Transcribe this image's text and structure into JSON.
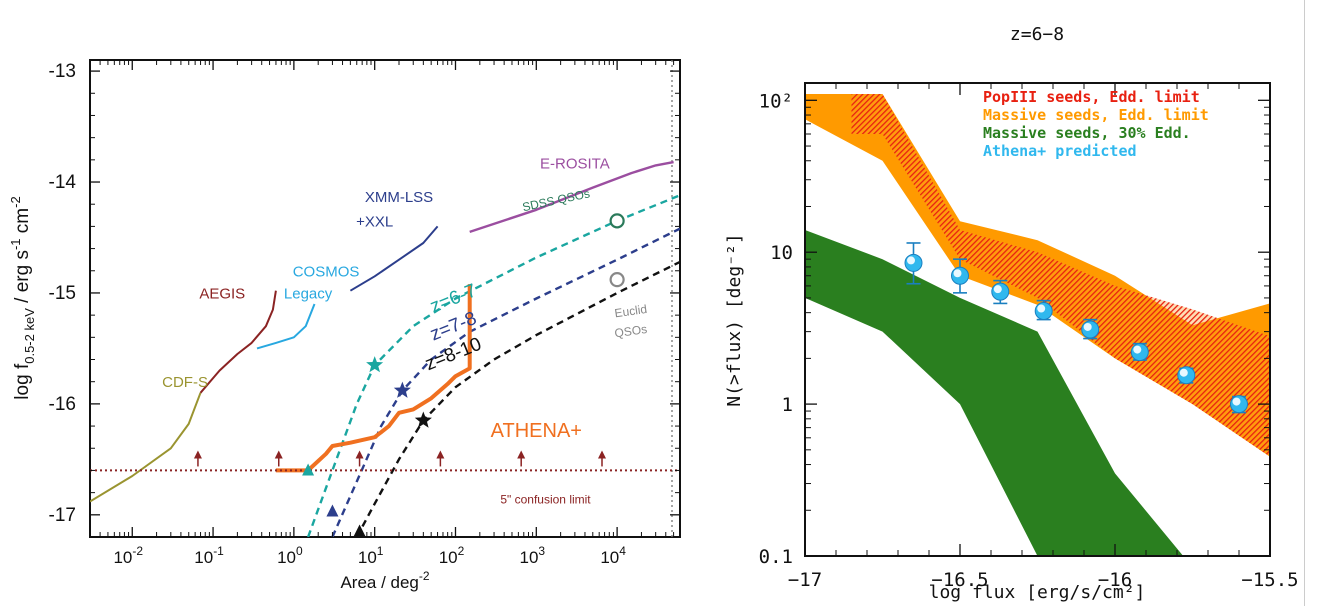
{
  "chart_data": [
    {
      "type": "line",
      "xlabel": "Area / deg",
      "xlabel_sup": "-2",
      "ylabel_parts": [
        "log f",
        "0.5-2 keV",
        " / erg s",
        "-1",
        " cm",
        "-2"
      ],
      "x_scale": "log",
      "xlim": [
        0.003,
        60000
      ],
      "ylim": [
        -17.2,
        -12.9
      ],
      "x_ticks": [
        {
          "value": 0.01,
          "base": "10",
          "exp": "-2"
        },
        {
          "value": 0.1,
          "base": "10",
          "exp": "-1"
        },
        {
          "value": 1,
          "base": "10",
          "exp": "0"
        },
        {
          "value": 10,
          "base": "10",
          "exp": "1"
        },
        {
          "value": 100,
          "base": "10",
          "exp": "2"
        },
        {
          "value": 1000,
          "base": "10",
          "exp": "3"
        },
        {
          "value": 10000,
          "base": "10",
          "exp": "4"
        }
      ],
      "y_ticks": [
        {
          "value": -13,
          "label": "-13"
        },
        {
          "value": -14,
          "label": "-14"
        },
        {
          "value": -15,
          "label": "-15"
        },
        {
          "value": -16,
          "label": "-16"
        },
        {
          "value": -17,
          "label": "-17"
        }
      ],
      "series": [
        {
          "name": "CDF-S",
          "color": "#9a9430",
          "style": "solid",
          "width": 2,
          "x": [
            0.003,
            0.01,
            0.03,
            0.05,
            0.07
          ],
          "y": [
            -16.88,
            -16.65,
            -16.4,
            -16.18,
            -15.9
          ]
        },
        {
          "name": "AEGIS",
          "color": "#8b2323",
          "style": "solid",
          "width": 2,
          "x": [
            0.07,
            0.12,
            0.2,
            0.3,
            0.45,
            0.55,
            0.6
          ],
          "y": [
            -15.9,
            -15.7,
            -15.55,
            -15.45,
            -15.3,
            -15.15,
            -14.98
          ]
        },
        {
          "name": "COSMOS Legacy",
          "color": "#28a8e0",
          "style": "solid",
          "width": 2,
          "x": [
            0.35,
            0.6,
            1.0,
            1.4,
            1.8
          ],
          "y": [
            -15.5,
            -15.45,
            -15.4,
            -15.3,
            -15.1
          ]
        },
        {
          "name": "XMM-LSS +XXL",
          "color": "#2c3e8c",
          "style": "solid",
          "width": 2,
          "x": [
            5,
            10,
            20,
            40,
            60
          ],
          "y": [
            -14.98,
            -14.85,
            -14.7,
            -14.55,
            -14.4
          ]
        },
        {
          "name": "E-ROSITA",
          "color": "#9b4ea0",
          "style": "solid",
          "width": 2.4,
          "x": [
            150,
            1000,
            5000,
            15000,
            30000,
            50000
          ],
          "y": [
            -14.45,
            -14.25,
            -14.05,
            -13.92,
            -13.85,
            -13.82
          ]
        },
        {
          "name": "z=6-7",
          "color": "#1aa6a0",
          "style": "dashed",
          "width": 2.4,
          "x": [
            1.5,
            3,
            6,
            10,
            30,
            100,
            1000,
            10000,
            60000
          ],
          "y": [
            -17.2,
            -16.6,
            -16.0,
            -15.65,
            -15.3,
            -15.05,
            -14.68,
            -14.35,
            -14.12
          ]
        },
        {
          "name": "z=7-8",
          "color": "#2c3e8c",
          "style": "dashed",
          "width": 2.4,
          "x": [
            3,
            6,
            12,
            22,
            50,
            150,
            1000,
            10000,
            60000
          ],
          "y": [
            -17.2,
            -16.7,
            -16.2,
            -15.88,
            -15.6,
            -15.35,
            -15.05,
            -14.7,
            -14.42
          ]
        },
        {
          "name": "z=8-10",
          "color": "#111111",
          "style": "dashed",
          "width": 2.4,
          "x": [
            6,
            10,
            20,
            40,
            100,
            300,
            1000,
            10000,
            60000
          ],
          "y": [
            -17.2,
            -16.9,
            -16.5,
            -16.15,
            -15.85,
            -15.6,
            -15.38,
            -15.0,
            -14.72
          ]
        },
        {
          "name": "ATHENA+",
          "color": "#f07020",
          "style": "solid",
          "width": 4,
          "x": [
            0.6,
            1.5,
            2.5,
            3,
            5,
            10,
            15,
            20,
            30,
            50,
            80,
            100,
            150,
            150
          ],
          "y": [
            -16.6,
            -16.6,
            -16.45,
            -16.38,
            -16.35,
            -16.3,
            -16.2,
            -16.08,
            -16.05,
            -15.95,
            -15.82,
            -15.75,
            -15.68,
            -14.92
          ]
        },
        {
          "name": "5\" confusion limit",
          "color": "#8b2323",
          "style": "dotted",
          "width": 2,
          "x": [
            0.003,
            60000
          ],
          "y": [
            -16.6,
            -16.6
          ]
        }
      ],
      "markers": [
        {
          "shape": "star",
          "color": "#1aa6a0",
          "x": 10,
          "y": -15.65
        },
        {
          "shape": "star",
          "color": "#2c3e8c",
          "x": 22,
          "y": -15.88
        },
        {
          "shape": "star",
          "color": "#111111",
          "x": 40,
          "y": -16.15
        },
        {
          "shape": "triangle",
          "color": "#1aa6a0",
          "x": 1.5,
          "y": -16.6
        },
        {
          "shape": "triangle",
          "color": "#2c3e8c",
          "x": 3,
          "y": -16.97
        },
        {
          "shape": "triangle",
          "color": "#111111",
          "x": 6.5,
          "y": -17.15
        },
        {
          "shape": "circle",
          "color": "#2a7a5a",
          "x": 10000,
          "y": -14.35
        },
        {
          "shape": "circle",
          "color": "#888888",
          "x": 10000,
          "y": -14.88
        }
      ],
      "upper_arrows_x": [
        0.065,
        0.65,
        6.5,
        65,
        650,
        6500
      ],
      "upper_arrows_y": -16.6,
      "annotations": [
        {
          "text": "E-ROSITA",
          "color": "#9b4ea0",
          "x": 3000,
          "y": -13.88,
          "size": 15
        },
        {
          "text": "XMM-LSS",
          "color": "#2c3e8c",
          "x": 20,
          "y": -14.18,
          "size": 15
        },
        {
          "text": "+XXL",
          "color": "#2c3e8c",
          "x": 10,
          "y": -14.4,
          "size": 15
        },
        {
          "text": "COSMOS",
          "color": "#28a8e0",
          "x": 2.5,
          "y": -14.85,
          "size": 15
        },
        {
          "text": "Legacy",
          "color": "#28a8e0",
          "x": 1.5,
          "y": -15.05,
          "size": 15
        },
        {
          "text": "AEGIS",
          "color": "#8b2323",
          "x": 0.13,
          "y": -15.05,
          "size": 15
        },
        {
          "text": "CDF-S",
          "color": "#9a9430",
          "x": 0.045,
          "y": -15.85,
          "size": 15
        },
        {
          "text": "ATHENA+",
          "color": "#f07020",
          "x": 1000,
          "y": -16.3,
          "size": 20
        },
        {
          "text": "5\" confusion limit",
          "color": "#8b2323",
          "x": 1300,
          "y": -16.9,
          "size": 12
        },
        {
          "text": "SDSS QSOs",
          "color": "#2a7a5a",
          "x": 1800,
          "y": -14.2,
          "size": 12,
          "rotate": -12
        },
        {
          "text": "Euclid",
          "color": "#888888",
          "x": 15000,
          "y": -15.2,
          "size": 12,
          "rotate": -8
        },
        {
          "text": "QSOs",
          "color": "#888888",
          "x": 15000,
          "y": -15.38,
          "size": 12,
          "rotate": -8
        },
        {
          "text": "z=6-7",
          "color": "#1aa6a0",
          "x": 100,
          "y": -15.1,
          "size": 19,
          "rotate": -22
        },
        {
          "text": "z=7-8",
          "color": "#2c3e8c",
          "x": 100,
          "y": -15.35,
          "size": 19,
          "rotate": -22
        },
        {
          "text": "z=8-10",
          "color": "#111111",
          "x": 100,
          "y": -15.6,
          "size": 19,
          "rotate": -22
        }
      ]
    },
    {
      "type": "area",
      "title": "z=6−8",
      "xlabel": "log flux [erg/s/cm²]",
      "ylabel": "N(>flux) [deg⁻²]",
      "y_scale": "log",
      "xlim": [
        -17,
        -15.5
      ],
      "ylim": [
        0.1,
        130
      ],
      "x_ticks": [
        {
          "value": -17,
          "label": "−17"
        },
        {
          "value": -16.5,
          "label": "−16.5"
        },
        {
          "value": -16,
          "label": "−16"
        },
        {
          "value": -15.5,
          "label": "−15.5"
        }
      ],
      "y_ticks": [
        {
          "value": 0.1,
          "label": "0.1"
        },
        {
          "value": 1,
          "label": "1"
        },
        {
          "value": 10,
          "label": "10"
        },
        {
          "value": 100,
          "label": "10²"
        }
      ],
      "series": [
        {
          "name": "PopIII seeds, Edd. limit",
          "color": "#e82010",
          "fill": "hatch",
          "x": [
            -16.85,
            -16.75,
            -16.5,
            -16.25,
            -16.0,
            -15.75,
            -15.5
          ],
          "upper": [
            110,
            110,
            14,
            10,
            6,
            4.2,
            2.8
          ],
          "lower": [
            60,
            60,
            9,
            5,
            2,
            1.0,
            0.45
          ]
        },
        {
          "name": "Massive seeds, Edd. limit",
          "color": "#ff9a00",
          "fill": "solid",
          "x": [
            -17,
            -16.75,
            -16.5,
            -16.25,
            -16.0,
            -15.75,
            -15.5
          ],
          "upper": [
            110,
            110,
            16,
            12,
            7,
            3.3,
            4.6
          ],
          "lower": [
            75,
            40,
            7,
            4.5,
            2.0,
            1.0,
            0.45
          ]
        },
        {
          "name": "Massive seeds, 30% Edd.",
          "color": "#2a7f1f",
          "fill": "solid",
          "x": [
            -17,
            -16.75,
            -16.5,
            -16.25,
            -16.0,
            -15.78
          ],
          "upper": [
            14,
            9,
            5,
            3,
            0.35,
            0.1
          ],
          "lower": [
            5,
            3,
            1,
            0.1,
            0.1,
            0.1
          ]
        }
      ],
      "points": {
        "name": "Athena+ predicted",
        "color": "#30b8ee",
        "x": [
          -16.65,
          -16.5,
          -16.37,
          -16.23,
          -16.08,
          -15.92,
          -15.77,
          -15.6
        ],
        "y": [
          8.5,
          7.0,
          5.5,
          4.1,
          3.1,
          2.2,
          1.55,
          1.0
        ],
        "err_lo": [
          6.2,
          5.4,
          4.6,
          3.6,
          2.7,
          1.95,
          1.38,
          0.88
        ],
        "err_hi": [
          11.5,
          9.0,
          6.5,
          4.8,
          3.6,
          2.5,
          1.72,
          1.12
        ]
      },
      "legend": {
        "position": "top-right"
      }
    }
  ]
}
